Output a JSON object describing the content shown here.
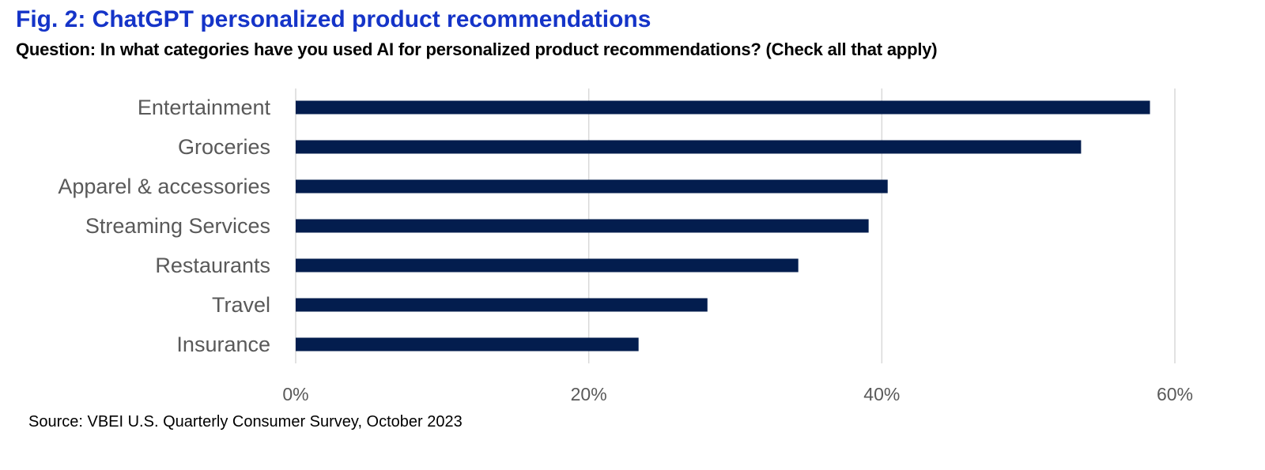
{
  "header": {
    "title": "Fig. 2: ChatGPT personalized product recommendations",
    "subtitle": "Question: In what categories have you used AI for personalized product recommendations? (Check all that apply)"
  },
  "footer": {
    "source": "Source: VBEI U.S. Quarterly Consumer Survey, October 2023"
  },
  "colors": {
    "bar": "#031d4e",
    "grid": "#d9d9d9",
    "title": "#1534c8",
    "label": "#595959"
  },
  "chart_data": {
    "type": "bar",
    "orientation": "horizontal",
    "title": "Fig. 2: ChatGPT personalized product recommendations",
    "subtitle": "Question: In what categories have you used AI for personalized product recommendations? (Check all that apply)",
    "categories": [
      "Entertainment",
      "Groceries",
      "Apparel & accessories",
      "Streaming Services",
      "Restaurants",
      "Travel",
      "Insurance"
    ],
    "values": [
      58.3,
      53.6,
      40.4,
      39.1,
      34.3,
      28.1,
      23.4
    ],
    "unit": "%",
    "xlim": [
      0,
      60
    ],
    "xticks": [
      0,
      20,
      40,
      60
    ],
    "xtick_labels": [
      "0%",
      "20%",
      "40%",
      "60%"
    ],
    "xlabel": "",
    "ylabel": "",
    "grid": "vertical",
    "legend": "none"
  }
}
